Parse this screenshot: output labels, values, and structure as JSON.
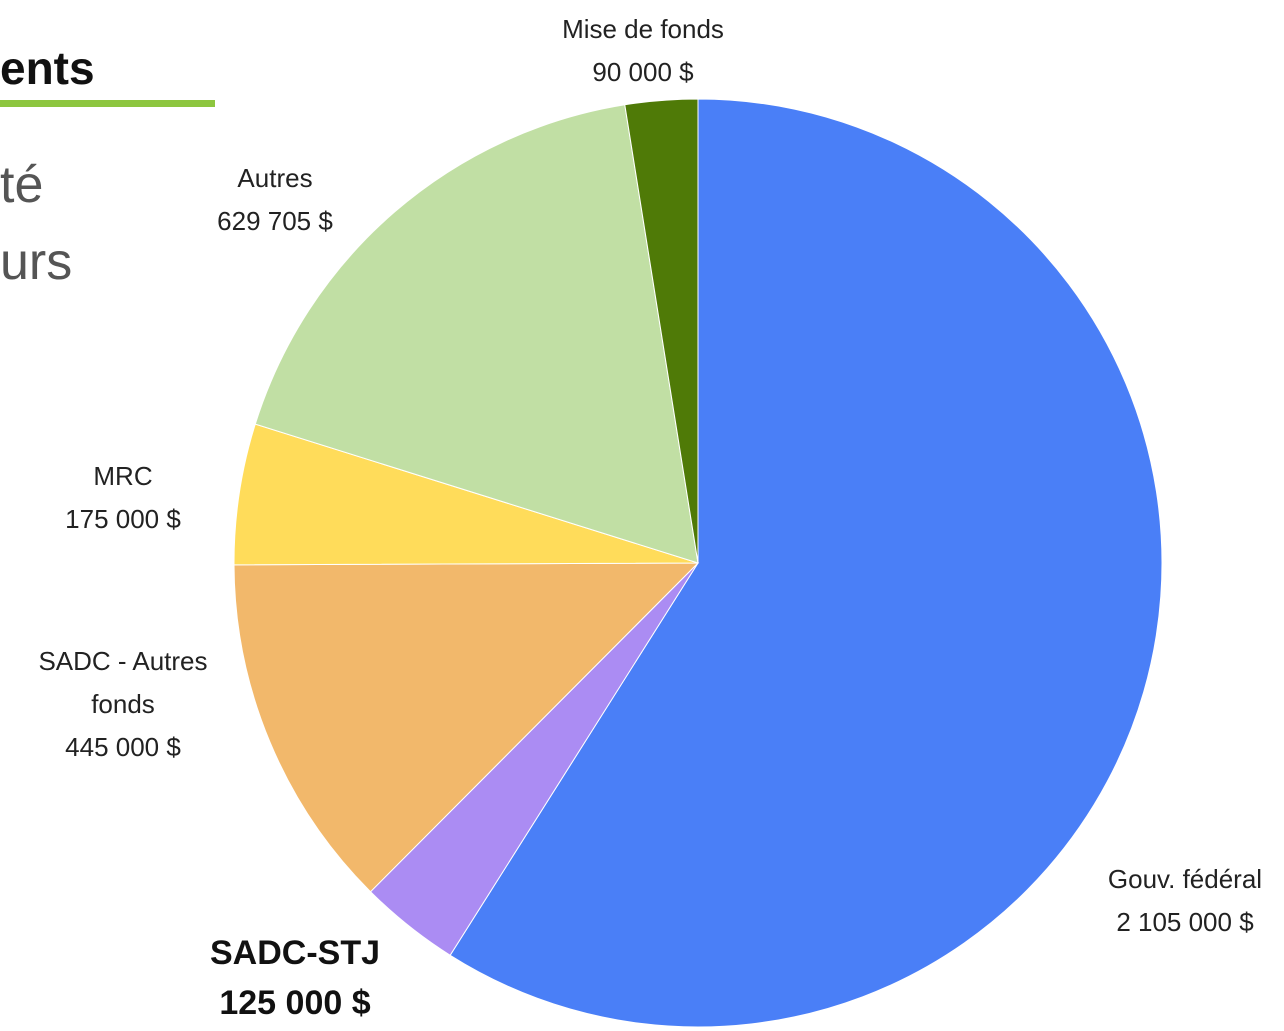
{
  "slide": {
    "title_fragment": "ents",
    "body_fragments": [
      "té",
      "urs"
    ]
  },
  "chart_data": {
    "type": "pie",
    "categories": [
      "Gouv. fédéral",
      "SADC-STJ",
      "SADC - Autres fonds",
      "MRC",
      "Autres",
      "Mise de fonds"
    ],
    "values": [
      2105000,
      125000,
      445000,
      175000,
      629705,
      90000
    ],
    "value_labels": [
      "2 105 000 $",
      "125 000 $",
      "445 000 $",
      "175 000 $",
      "629 705 $",
      "90 000 $"
    ],
    "colors": [
      "#4a7ff7",
      "#ab8cf3",
      "#f2b86b",
      "#ffdc5a",
      "#c1dfa4",
      "#4f7a07"
    ]
  }
}
